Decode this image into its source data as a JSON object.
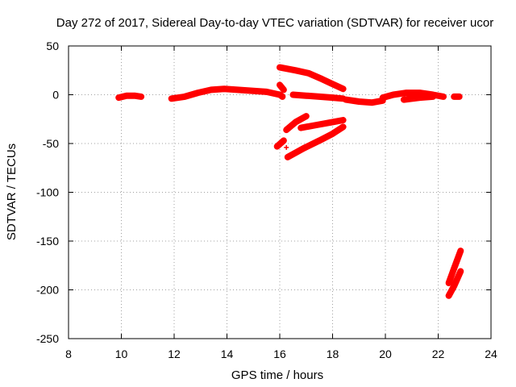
{
  "chart_data": {
    "type": "scatter",
    "title": "Day 272 of 2017, Sidereal Day-to-day VTEC variation (SDTVAR) for receiver ucor",
    "xlabel": "GPS time / hours",
    "ylabel": "SDTVAR / TECUs",
    "xlim": [
      8,
      24
    ],
    "ylim": [
      -250,
      50
    ],
    "xticks": [
      8,
      10,
      12,
      14,
      16,
      18,
      20,
      22,
      24
    ],
    "yticks": [
      50,
      0,
      -50,
      -100,
      -150,
      -200,
      -250
    ],
    "grid": true,
    "marker": "+",
    "color": "#ff0000",
    "series": [
      {
        "name": "s1",
        "x": [
          9.9,
          10.2,
          10.5,
          10.75
        ],
        "y": [
          -3,
          -1,
          -1,
          -2
        ]
      },
      {
        "name": "s2",
        "x": [
          11.9,
          12.4,
          12.9,
          13.4,
          13.9,
          14.4,
          15.0,
          15.5,
          16.0,
          16.1
        ],
        "y": [
          -4,
          -2,
          2,
          5,
          6,
          5,
          4,
          3,
          0,
          -2
        ]
      },
      {
        "name": "s3",
        "x": [
          16.0,
          16.15
        ],
        "y": [
          10,
          5
        ]
      },
      {
        "name": "s4",
        "x": [
          16.0,
          16.6,
          17.1,
          17.6,
          18.0,
          18.4
        ],
        "y": [
          28,
          25,
          22,
          16,
          11,
          6
        ]
      },
      {
        "name": "s5",
        "x": [
          16.5,
          17.0,
          17.5,
          18.0,
          18.4
        ],
        "y": [
          0,
          -1,
          -2,
          -3,
          -4
        ]
      },
      {
        "name": "s6",
        "x": [
          18.5,
          19.0,
          19.5,
          19.9
        ],
        "y": [
          -5,
          -7,
          -8,
          -6
        ]
      },
      {
        "name": "s7",
        "x": [
          19.9,
          20.3,
          20.8,
          21.3,
          21.8,
          22.2
        ],
        "y": [
          -3,
          0,
          2,
          2,
          0,
          -2
        ]
      },
      {
        "name": "s8",
        "x": [
          20.7,
          21.3,
          21.8
        ],
        "y": [
          -5,
          -3,
          -2
        ]
      },
      {
        "name": "s9",
        "x": [
          22.6,
          22.8
        ],
        "y": [
          -2,
          -2
        ]
      },
      {
        "name": "s10",
        "x": [
          16.25,
          16.6,
          17.0
        ],
        "y": [
          -36,
          -28,
          -22
        ]
      },
      {
        "name": "s11",
        "x": [
          16.8,
          17.4,
          18.0,
          18.4
        ],
        "y": [
          -34,
          -31,
          -28,
          -26
        ]
      },
      {
        "name": "s12",
        "x": [
          16.3,
          16.9,
          17.5,
          18.0,
          18.4
        ],
        "y": [
          -64,
          -55,
          -47,
          -40,
          -33
        ]
      },
      {
        "name": "s13",
        "x": [
          15.9,
          16.15
        ],
        "y": [
          -53,
          -47
        ]
      },
      {
        "name": "s14",
        "x": [
          16.25
        ],
        "y": [
          -54
        ]
      },
      {
        "name": "s15",
        "x": [
          22.4,
          22.6,
          22.85
        ],
        "y": [
          -193,
          -178,
          -160
        ]
      },
      {
        "name": "s16",
        "x": [
          22.4,
          22.6,
          22.85
        ],
        "y": [
          -206,
          -196,
          -181
        ]
      }
    ]
  }
}
